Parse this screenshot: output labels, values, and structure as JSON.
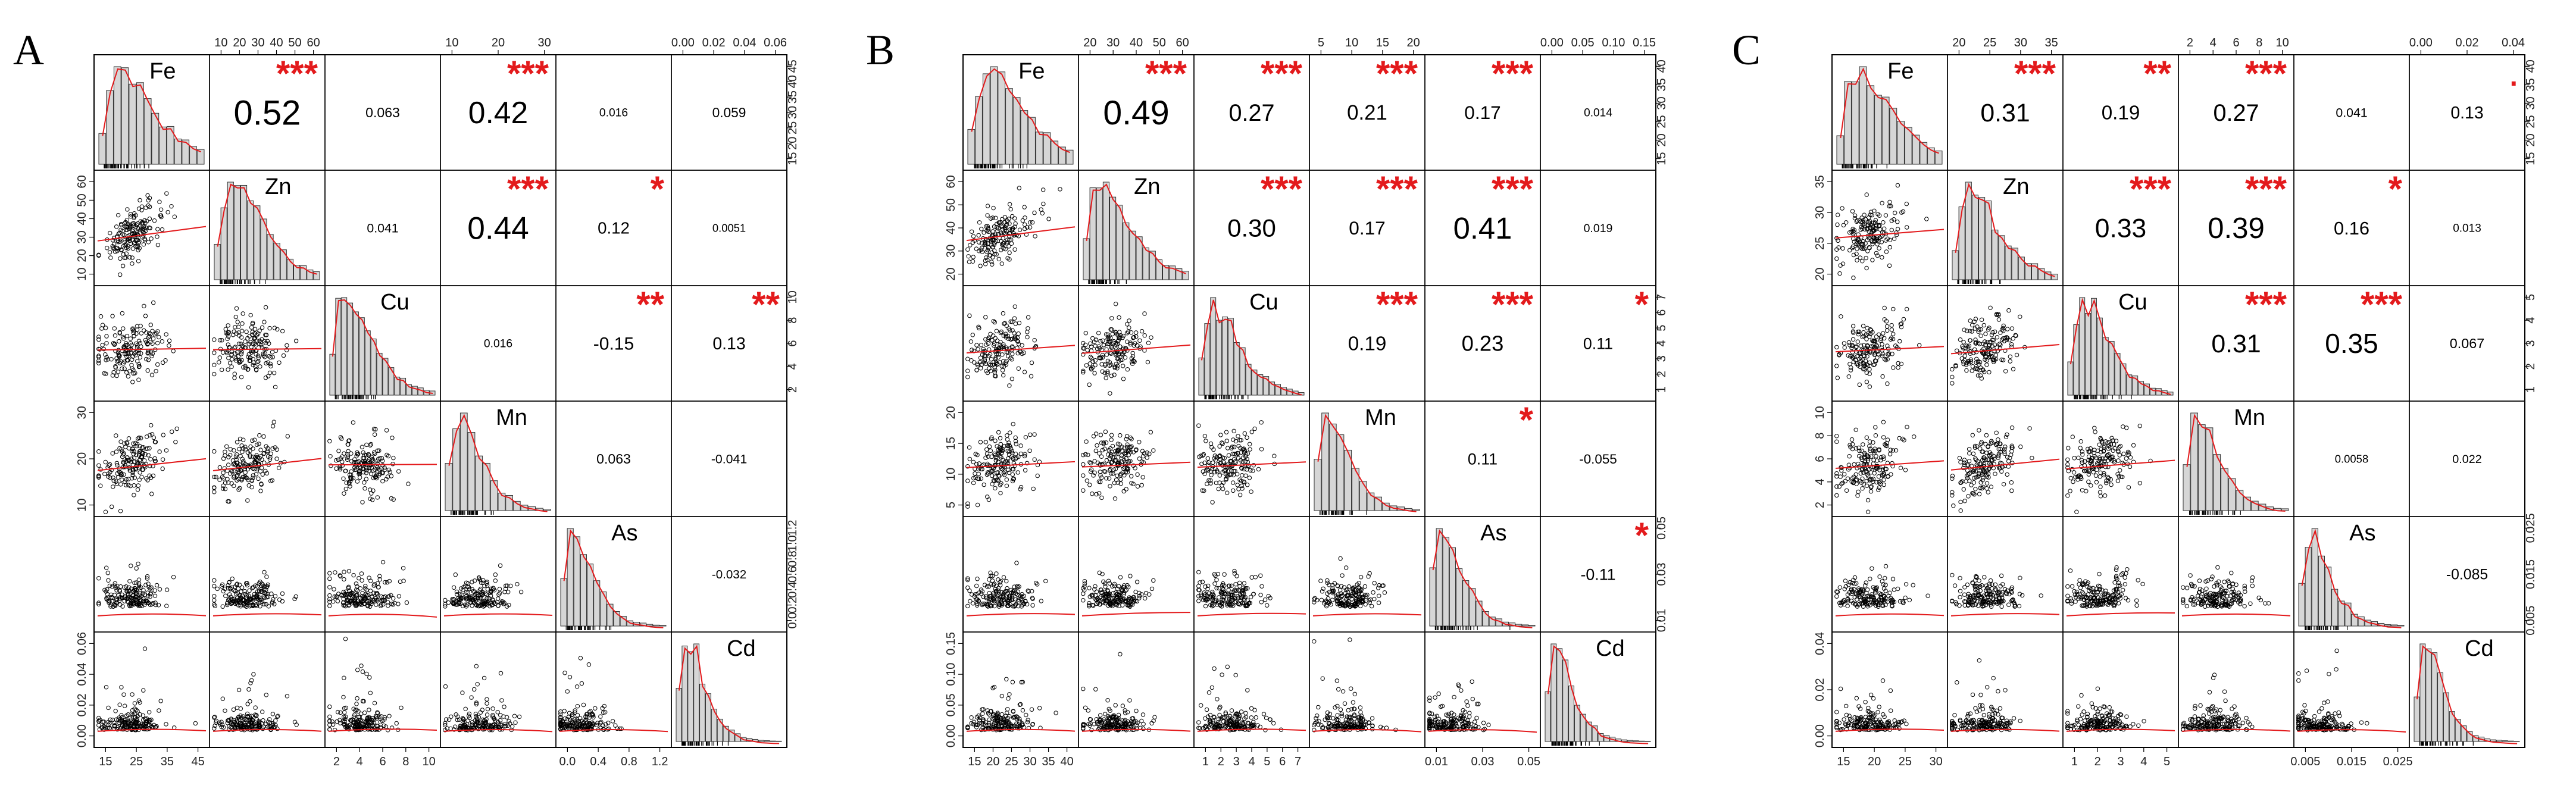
{
  "chart_data": [
    {
      "type": "scatter-matrix",
      "panel_label": "A",
      "variables": [
        "Fe",
        "Zn",
        "Cu",
        "Mn",
        "As",
        "Cd"
      ],
      "top_ticks": {
        "1": [
          "10",
          "20",
          "30",
          "40",
          "50",
          "60"
        ],
        "3": [
          "10",
          "20",
          "30"
        ],
        "5": [
          "0.00",
          "0.02",
          "0.04",
          "0.06"
        ]
      },
      "right_ticks": {
        "0": [
          "15",
          "20",
          "25",
          "30",
          "35",
          "40",
          "45"
        ],
        "2": [
          "2",
          "4",
          "6",
          "8",
          "10"
        ],
        "4": [
          "0.0",
          "0.2",
          "0.4",
          "0.6",
          "0.8",
          "1.0",
          "1.2"
        ]
      },
      "left_ticks": {
        "1": [
          "10",
          "20",
          "30",
          "40",
          "50",
          "60"
        ],
        "3": [
          "10",
          "20",
          "30"
        ],
        "5": [
          "0.00",
          "0.02",
          "0.04",
          "0.06"
        ]
      },
      "bottom_ticks": {
        "0": [
          "15",
          "25",
          "35",
          "45"
        ],
        "2": [
          "2",
          "4",
          "6",
          "8",
          "10"
        ],
        "4": [
          "0.0",
          "0.4",
          "0.8",
          "1.2"
        ]
      },
      "correlations": [
        {
          "row": 0,
          "col": 1,
          "r": "0.52",
          "stars": "***"
        },
        {
          "row": 0,
          "col": 2,
          "r": "0.063",
          "stars": ""
        },
        {
          "row": 0,
          "col": 3,
          "r": "0.42",
          "stars": "***"
        },
        {
          "row": 0,
          "col": 4,
          "r": "0.016",
          "stars": ""
        },
        {
          "row": 0,
          "col": 5,
          "r": "0.059",
          "stars": ""
        },
        {
          "row": 1,
          "col": 2,
          "r": "0.041",
          "stars": ""
        },
        {
          "row": 1,
          "col": 3,
          "r": "0.44",
          "stars": "***"
        },
        {
          "row": 1,
          "col": 4,
          "r": "0.12",
          "stars": "*"
        },
        {
          "row": 1,
          "col": 5,
          "r": "0.0051",
          "stars": ""
        },
        {
          "row": 2,
          "col": 3,
          "r": "0.016",
          "stars": ""
        },
        {
          "row": 2,
          "col": 4,
          "r": "-0.15",
          "stars": "**"
        },
        {
          "row": 2,
          "col": 5,
          "r": "0.13",
          "stars": "**"
        },
        {
          "row": 3,
          "col": 4,
          "r": "0.063",
          "stars": ""
        },
        {
          "row": 3,
          "col": 5,
          "r": "-0.041",
          "stars": ""
        },
        {
          "row": 4,
          "col": 5,
          "r": "-0.032",
          "stars": ""
        }
      ]
    },
    {
      "type": "scatter-matrix",
      "panel_label": "B",
      "variables": [
        "Fe",
        "Zn",
        "Cu",
        "Mn",
        "As",
        "Cd"
      ],
      "top_ticks": {
        "1": [
          "20",
          "30",
          "40",
          "50",
          "60"
        ],
        "3": [
          "5",
          "10",
          "15",
          "20"
        ],
        "5": [
          "0.00",
          "0.05",
          "0.10",
          "0.15"
        ]
      },
      "right_ticks": {
        "0": [
          "15",
          "20",
          "25",
          "30",
          "35",
          "40"
        ],
        "2": [
          "1",
          "2",
          "3",
          "4",
          "5",
          "6",
          "7"
        ],
        "4": [
          "0.01",
          "0.03",
          "0.05"
        ]
      },
      "left_ticks": {
        "1": [
          "20",
          "30",
          "40",
          "50",
          "60"
        ],
        "3": [
          "5",
          "10",
          "15",
          "20"
        ],
        "5": [
          "0.00",
          "0.05",
          "0.10",
          "0.15"
        ]
      },
      "bottom_ticks": {
        "0": [
          "15",
          "20",
          "25",
          "30",
          "35",
          "40"
        ],
        "2": [
          "1",
          "2",
          "3",
          "4",
          "5",
          "6",
          "7"
        ],
        "4": [
          "0.01",
          "0.03",
          "0.05"
        ]
      },
      "correlations": [
        {
          "row": 0,
          "col": 1,
          "r": "0.49",
          "stars": "***"
        },
        {
          "row": 0,
          "col": 2,
          "r": "0.27",
          "stars": "***"
        },
        {
          "row": 0,
          "col": 3,
          "r": "0.21",
          "stars": "***"
        },
        {
          "row": 0,
          "col": 4,
          "r": "0.17",
          "stars": "***"
        },
        {
          "row": 0,
          "col": 5,
          "r": "0.014",
          "stars": ""
        },
        {
          "row": 1,
          "col": 2,
          "r": "0.30",
          "stars": "***"
        },
        {
          "row": 1,
          "col": 3,
          "r": "0.17",
          "stars": "***"
        },
        {
          "row": 1,
          "col": 4,
          "r": "0.41",
          "stars": "***"
        },
        {
          "row": 1,
          "col": 5,
          "r": "0.019",
          "stars": ""
        },
        {
          "row": 2,
          "col": 3,
          "r": "0.19",
          "stars": "***"
        },
        {
          "row": 2,
          "col": 4,
          "r": "0.23",
          "stars": "***"
        },
        {
          "row": 2,
          "col": 5,
          "r": "0.11",
          "stars": "*"
        },
        {
          "row": 3,
          "col": 4,
          "r": "0.11",
          "stars": "*"
        },
        {
          "row": 3,
          "col": 5,
          "r": "-0.055",
          "stars": ""
        },
        {
          "row": 4,
          "col": 5,
          "r": "-0.11",
          "stars": "*"
        }
      ]
    },
    {
      "type": "scatter-matrix",
      "panel_label": "C",
      "variables": [
        "Fe",
        "Zn",
        "Cu",
        "Mn",
        "As",
        "Cd"
      ],
      "top_ticks": {
        "1": [
          "20",
          "25",
          "30",
          "35"
        ],
        "3": [
          "2",
          "4",
          "6",
          "8",
          "10"
        ],
        "5": [
          "0.00",
          "0.02",
          "0.04"
        ]
      },
      "right_ticks": {
        "0": [
          "15",
          "20",
          "25",
          "30",
          "35",
          "40"
        ],
        "2": [
          "1",
          "2",
          "3",
          "4",
          "5"
        ],
        "4": [
          "0.005",
          "0.015",
          "0.025"
        ]
      },
      "left_ticks": {
        "1": [
          "20",
          "25",
          "30",
          "35"
        ],
        "3": [
          "2",
          "4",
          "6",
          "8",
          "10"
        ],
        "5": [
          "0.00",
          "0.02",
          "0.04"
        ]
      },
      "bottom_ticks": {
        "0": [
          "15",
          "20",
          "25",
          "30"
        ],
        "2": [
          "1",
          "2",
          "3",
          "4",
          "5"
        ],
        "4": [
          "0.005",
          "0.015",
          "0.025"
        ]
      },
      "correlations": [
        {
          "row": 0,
          "col": 1,
          "r": "0.31",
          "stars": "***"
        },
        {
          "row": 0,
          "col": 2,
          "r": "0.19",
          "stars": "**"
        },
        {
          "row": 0,
          "col": 3,
          "r": "0.27",
          "stars": "***"
        },
        {
          "row": 0,
          "col": 4,
          "r": "0.041",
          "stars": ""
        },
        {
          "row": 0,
          "col": 5,
          "r": "0.13",
          "stars": "."
        },
        {
          "row": 1,
          "col": 2,
          "r": "0.33",
          "stars": "***"
        },
        {
          "row": 1,
          "col": 3,
          "r": "0.39",
          "stars": "***"
        },
        {
          "row": 1,
          "col": 4,
          "r": "0.16",
          "stars": "*"
        },
        {
          "row": 1,
          "col": 5,
          "r": "0.013",
          "stars": ""
        },
        {
          "row": 2,
          "col": 3,
          "r": "0.31",
          "stars": "***"
        },
        {
          "row": 2,
          "col": 4,
          "r": "0.35",
          "stars": "***"
        },
        {
          "row": 2,
          "col": 5,
          "r": "0.067",
          "stars": ""
        },
        {
          "row": 3,
          "col": 4,
          "r": "0.0058",
          "stars": ""
        },
        {
          "row": 3,
          "col": 5,
          "r": "0.022",
          "stars": ""
        },
        {
          "row": 4,
          "col": 5,
          "r": "-0.085",
          "stars": ""
        }
      ]
    }
  ]
}
